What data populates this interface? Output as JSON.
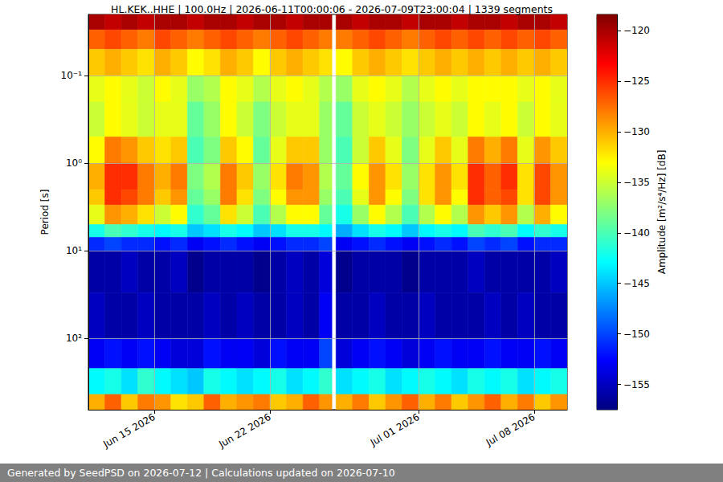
{
  "chart_data": {
    "type": "heatmap",
    "title": "HL.KEK..HHE | 100.0Hz | 2026-06-11T00:00:06 - 2026-07-09T23:00:04 | 1339 segments",
    "ylabel": "Period [s]",
    "footer": "Generated by SeedPSD on 2026-07-12 | Calculations updated on 2026-07-10",
    "log": "y",
    "grid": true,
    "xlim": [
      "2026-06-11T00:00",
      "2026-07-10T00:00"
    ],
    "xticks": [
      {
        "value": "2026-06-15T00:00",
        "label": "Jun 15 2026"
      },
      {
        "value": "2026-06-22T00:00",
        "label": "Jun 22 2026"
      },
      {
        "value": "2026-07-01T00:00",
        "label": "Jul 01 2026"
      },
      {
        "value": "2026-07-08T00:00",
        "label": "Jul 08 2026"
      }
    ],
    "ylim": [
      0.02,
      650
    ],
    "yticks": [
      {
        "value": 0.1,
        "label": "10⁻¹"
      },
      {
        "value": 1,
        "label": "10⁰"
      },
      {
        "value": 10,
        "label": "10¹"
      },
      {
        "value": 100,
        "label": "10²"
      }
    ],
    "x_edges": [
      "2026-06-11T00:00",
      "2026-06-12T00:00",
      "2026-06-13T00:00",
      "2026-06-14T00:00",
      "2026-06-15T00:00",
      "2026-06-16T00:00",
      "2026-06-17T00:00",
      "2026-06-18T00:00",
      "2026-06-19T00:00",
      "2026-06-20T00:00",
      "2026-06-21T00:00",
      "2026-06-22T00:00",
      "2026-06-23T00:00",
      "2026-06-24T00:00",
      "2026-06-25T00:00",
      "2026-06-25T18:00",
      "2026-06-26T00:00",
      "2026-06-27T00:00",
      "2026-06-28T00:00",
      "2026-06-29T00:00",
      "2026-06-30T00:00",
      "2026-07-01T00:00",
      "2026-07-02T00:00",
      "2026-07-03T00:00",
      "2026-07-04T00:00",
      "2026-07-05T00:00",
      "2026-07-06T00:00",
      "2026-07-07T00:00",
      "2026-07-08T00:00",
      "2026-07-09T00:00",
      "2026-07-10T00:00"
    ],
    "y_edges": [
      0.02,
      0.03,
      0.05,
      0.1,
      0.2,
      0.5,
      1,
      2,
      3,
      5,
      7,
      10,
      30,
      100,
      220,
      435,
      650
    ],
    "cells": [
      [
        -120,
        -127,
        -131,
        -134,
        -135,
        -133,
        -130,
        -131,
        -134,
        -142,
        -151,
        -156,
        -155,
        -153,
        -143,
        -130
      ],
      [
        -121,
        -126,
        -130,
        -133,
        -133,
        -128,
        -125,
        -125,
        -129,
        -140,
        -150,
        -156,
        -156,
        -152,
        -142,
        -127
      ],
      [
        -120,
        -127,
        -131,
        -134,
        -134,
        -129,
        -125,
        -126,
        -130,
        -141,
        -151,
        -155,
        -156,
        -153,
        -144,
        -131
      ],
      [
        -121,
        -128,
        -132,
        -135,
        -135,
        -131,
        -128,
        -128,
        -132,
        -142,
        -151,
        -156,
        -155,
        -152,
        -141,
        -128
      ],
      [
        -120,
        -126,
        -130,
        -133,
        -134,
        -132,
        -130,
        -131,
        -135,
        -143,
        -152,
        -156,
        -156,
        -153,
        -143,
        -129
      ],
      [
        -120,
        -127,
        -131,
        -134,
        -134,
        -131,
        -128,
        -129,
        -133,
        -142,
        -151,
        -155,
        -156,
        -154,
        -144,
        -132
      ],
      [
        -121,
        -128,
        -133,
        -137,
        -139,
        -140,
        -138,
        -139,
        -141,
        -145,
        -153,
        -157,
        -156,
        -154,
        -145,
        -131
      ],
      [
        -120,
        -127,
        -132,
        -136,
        -137,
        -138,
        -136,
        -137,
        -139,
        -144,
        -152,
        -156,
        -155,
        -152,
        -142,
        -127
      ],
      [
        -120,
        -126,
        -130,
        -133,
        -133,
        -131,
        -128,
        -128,
        -132,
        -142,
        -151,
        -156,
        -156,
        -153,
        -143,
        -130
      ],
      [
        -121,
        -127,
        -131,
        -134,
        -135,
        -133,
        -131,
        -132,
        -135,
        -143,
        -152,
        -156,
        -155,
        -153,
        -144,
        -129
      ],
      [
        -120,
        -128,
        -133,
        -136,
        -138,
        -139,
        -137,
        -138,
        -140,
        -145,
        -153,
        -157,
        -156,
        -154,
        -143,
        -128
      ],
      [
        -120,
        -127,
        -131,
        -134,
        -135,
        -134,
        -132,
        -133,
        -136,
        -144,
        -152,
        -156,
        -156,
        -152,
        -142,
        -131
      ],
      [
        -121,
        -126,
        -130,
        -133,
        -134,
        -131,
        -128,
        -129,
        -133,
        -142,
        -151,
        -155,
        -155,
        -153,
        -144,
        -130
      ],
      [
        -120,
        -127,
        -131,
        -134,
        -134,
        -131,
        -129,
        -129,
        -133,
        -142,
        -151,
        -156,
        -156,
        -153,
        -143,
        -127
      ],
      [
        -120,
        -128,
        -132,
        -136,
        -137,
        -137,
        -136,
        -137,
        -139,
        -143,
        -150,
        -154,
        -153,
        -150,
        -141,
        -129
      ],
      [
        null,
        null,
        null,
        null,
        null,
        null,
        null,
        null,
        null,
        null,
        null,
        null,
        null,
        null,
        null,
        null
      ],
      [
        -120,
        -128,
        -133,
        -137,
        -139,
        -140,
        -139,
        -140,
        -142,
        -146,
        -153,
        -157,
        -156,
        -154,
        -144,
        -130
      ],
      [
        -121,
        -127,
        -131,
        -134,
        -135,
        -135,
        -133,
        -134,
        -137,
        -144,
        -152,
        -156,
        -156,
        -153,
        -143,
        -128
      ],
      [
        -120,
        -126,
        -130,
        -133,
        -134,
        -131,
        -129,
        -129,
        -133,
        -142,
        -151,
        -156,
        -155,
        -152,
        -142,
        -131
      ],
      [
        -120,
        -127,
        -131,
        -134,
        -135,
        -134,
        -132,
        -133,
        -136,
        -143,
        -152,
        -156,
        -156,
        -153,
        -144,
        -129
      ],
      [
        -121,
        -128,
        -132,
        -136,
        -137,
        -138,
        -137,
        -138,
        -140,
        -145,
        -153,
        -157,
        -156,
        -154,
        -143,
        -127
      ],
      [
        -120,
        -127,
        -131,
        -134,
        -135,
        -134,
        -132,
        -132,
        -136,
        -143,
        -152,
        -156,
        -155,
        -153,
        -142,
        -130
      ],
      [
        -120,
        -126,
        -130,
        -133,
        -134,
        -131,
        -129,
        -129,
        -133,
        -142,
        -151,
        -156,
        -156,
        -152,
        -143,
        -128
      ],
      [
        -121,
        -127,
        -131,
        -134,
        -135,
        -134,
        -132,
        -133,
        -136,
        -143,
        -152,
        -156,
        -156,
        -153,
        -144,
        -131
      ],
      [
        -120,
        -126,
        -130,
        -133,
        -133,
        -128,
        -125,
        -125,
        -129,
        -140,
        -150,
        -155,
        -156,
        -153,
        -142,
        -129
      ],
      [
        -120,
        -127,
        -131,
        -133,
        -134,
        -130,
        -127,
        -127,
        -131,
        -141,
        -151,
        -156,
        -155,
        -152,
        -143,
        -127
      ],
      [
        -121,
        -126,
        -130,
        -133,
        -133,
        -128,
        -125,
        -126,
        -129,
        -140,
        -150,
        -156,
        -156,
        -153,
        -142,
        -130
      ],
      [
        -120,
        -127,
        -131,
        -134,
        -135,
        -134,
        -132,
        -132,
        -136,
        -143,
        -152,
        -156,
        -155,
        -153,
        -144,
        -128
      ],
      [
        -120,
        -126,
        -130,
        -133,
        -133,
        -129,
        -126,
        -126,
        -130,
        -141,
        -151,
        -156,
        -156,
        -152,
        -143,
        -131
      ],
      [
        -121,
        -127,
        -131,
        -134,
        -134,
        -131,
        -129,
        -129,
        -133,
        -142,
        -151,
        -155,
        -156,
        -153,
        -142,
        -129
      ]
    ],
    "colorbar": {
      "label": "Amplitude [m²/s⁴/Hz] [dB]",
      "range": [
        -157.5,
        -118.4
      ],
      "ticks": [
        {
          "value": -155,
          "label": "−155"
        },
        {
          "value": -150,
          "label": "−150"
        },
        {
          "value": -145,
          "label": "−145"
        },
        {
          "value": -140,
          "label": "−140"
        },
        {
          "value": -135,
          "label": "−135"
        },
        {
          "value": -130,
          "label": "−130"
        },
        {
          "value": -125,
          "label": "−125"
        },
        {
          "value": -120,
          "label": "−120"
        }
      ]
    }
  }
}
